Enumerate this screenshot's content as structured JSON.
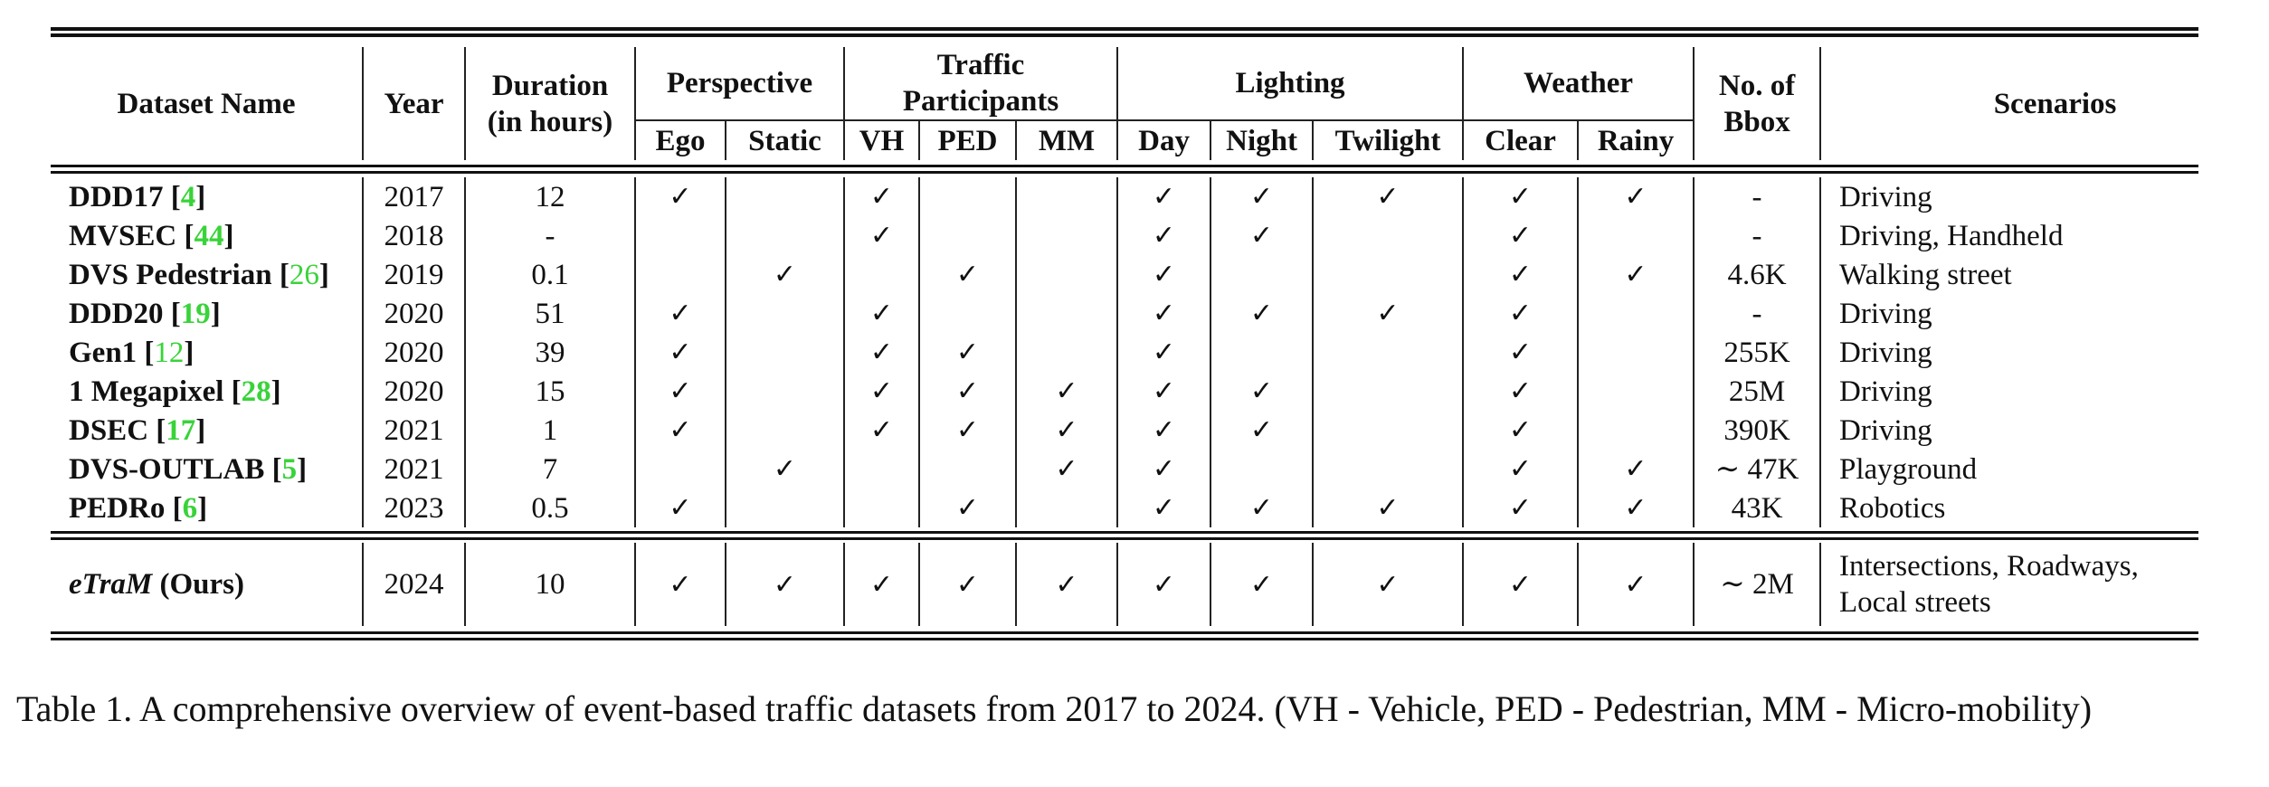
{
  "table": {
    "headers": {
      "dataset_name": "Dataset Name",
      "year": "Year",
      "duration": "Duration (in hours)",
      "perspective": "Perspective",
      "traffic": "Traffic Participants",
      "lighting": "Lighting",
      "weather": "Weather",
      "bbox": "No. of Bbox",
      "scenarios": "Scenarios",
      "sub": [
        "Ego",
        "Static",
        "VH",
        "PED",
        "MM",
        "Day",
        "Night",
        "Twilight",
        "Clear",
        "Rainy"
      ]
    },
    "check_glyph": "✓",
    "rows": [
      {
        "name": "DDD17",
        "cite": "4",
        "cite_bold": true,
        "year": "2017",
        "duration": "12",
        "checks": [
          1,
          0,
          1,
          0,
          0,
          1,
          1,
          1,
          1,
          1
        ],
        "bbox": "-",
        "scenarios": "Driving"
      },
      {
        "name": "MVSEC",
        "cite": "44",
        "cite_bold": true,
        "year": "2018",
        "duration": "-",
        "checks": [
          0,
          0,
          1,
          0,
          0,
          1,
          1,
          0,
          1,
          0
        ],
        "bbox": "-",
        "scenarios": "Driving, Handheld"
      },
      {
        "name": "DVS Pedestrian",
        "cite": "26",
        "cite_bold": false,
        "year": "2019",
        "duration": "0.1",
        "checks": [
          0,
          1,
          0,
          1,
          0,
          1,
          0,
          0,
          1,
          1
        ],
        "bbox": "4.6K",
        "scenarios": "Walking street"
      },
      {
        "name": "DDD20",
        "cite": "19",
        "cite_bold": true,
        "year": "2020",
        "duration": "51",
        "checks": [
          1,
          0,
          1,
          0,
          0,
          1,
          1,
          1,
          1,
          0
        ],
        "bbox": "-",
        "scenarios": "Driving"
      },
      {
        "name": "Gen1",
        "cite": "12",
        "cite_bold": false,
        "year": "2020",
        "duration": "39",
        "checks": [
          1,
          0,
          1,
          1,
          0,
          1,
          0,
          0,
          1,
          0
        ],
        "bbox": "255K",
        "scenarios": "Driving"
      },
      {
        "name": "1 Megapixel",
        "cite": "28",
        "cite_bold": true,
        "year": "2020",
        "duration": "15",
        "checks": [
          1,
          0,
          1,
          1,
          1,
          1,
          1,
          0,
          1,
          0
        ],
        "bbox": "25M",
        "scenarios": "Driving"
      },
      {
        "name": "DSEC",
        "cite": "17",
        "cite_bold": true,
        "year": "2021",
        "duration": "1",
        "checks": [
          1,
          0,
          1,
          1,
          1,
          1,
          1,
          0,
          1,
          0
        ],
        "bbox": "390K",
        "scenarios": "Driving"
      },
      {
        "name": "DVS-OUTLAB",
        "cite": "5",
        "cite_bold": true,
        "year": "2021",
        "duration": "7",
        "checks": [
          0,
          1,
          0,
          0,
          1,
          1,
          0,
          0,
          1,
          1
        ],
        "bbox": "∼ 47K",
        "scenarios": "Playground"
      },
      {
        "name": "PEDRo",
        "cite": "6",
        "cite_bold": true,
        "year": "2023",
        "duration": "0.5",
        "checks": [
          1,
          0,
          0,
          1,
          0,
          1,
          1,
          1,
          1,
          1
        ],
        "bbox": "43K",
        "scenarios": "Robotics"
      }
    ],
    "ours": {
      "name": "eTraM",
      "suffix": " (Ours)",
      "year": "2024",
      "duration": "10",
      "checks": [
        1,
        1,
        1,
        1,
        1,
        1,
        1,
        1,
        1,
        1
      ],
      "bbox": "∼ 2M",
      "scenarios_line1": "Intersections, Roadways,",
      "scenarios_line2": "Local streets"
    }
  },
  "caption": {
    "text": "Table 1.  A comprehensive overview of event-based traffic datasets from 2017 to 2024.  (VH - Vehicle, PED - Pedestrian, MM - Micro-mobility)"
  }
}
